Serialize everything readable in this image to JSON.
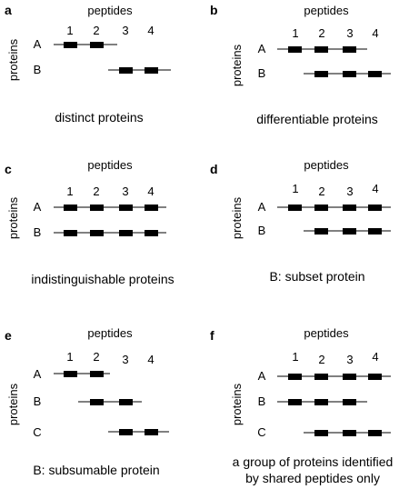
{
  "axis_label": "proteins",
  "peptide_title": "peptides",
  "panels": [
    {
      "letter": "a",
      "peptide_numbers": [
        "1",
        "2",
        "3",
        "4"
      ],
      "rows": [
        {
          "protein": "A",
          "peptides": [
            1,
            2
          ]
        },
        {
          "protein": "B",
          "peptides": [
            3,
            4
          ]
        }
      ],
      "caption": [
        "distinct proteins"
      ]
    },
    {
      "letter": "b",
      "peptide_numbers": [
        "1",
        "2",
        "3",
        "4"
      ],
      "rows": [
        {
          "protein": "A",
          "peptides": [
            1,
            2,
            3
          ]
        },
        {
          "protein": "B",
          "peptides": [
            2,
            3,
            4
          ]
        }
      ],
      "caption": [
        "differentiable proteins"
      ]
    },
    {
      "letter": "c",
      "peptide_numbers": [
        "1",
        "2",
        "3",
        "4"
      ],
      "rows": [
        {
          "protein": "A",
          "peptides": [
            1,
            2,
            3,
            4
          ]
        },
        {
          "protein": "B",
          "peptides": [
            1,
            2,
            3,
            4
          ]
        }
      ],
      "caption": [
        "indistinguishable proteins"
      ]
    },
    {
      "letter": "d",
      "peptide_numbers": [
        "1",
        "2",
        "3",
        "4"
      ],
      "rows": [
        {
          "protein": "A",
          "peptides": [
            1,
            2,
            3,
            4
          ]
        },
        {
          "protein": "B",
          "peptides": [
            2,
            3,
            4
          ]
        }
      ],
      "caption": [
        "B: subset protein"
      ]
    },
    {
      "letter": "e",
      "peptide_numbers": [
        "1",
        "2",
        "3",
        "4"
      ],
      "rows": [
        {
          "protein": "A",
          "peptides": [
            1,
            2
          ]
        },
        {
          "protein": "B",
          "peptides": [
            2,
            3
          ]
        },
        {
          "protein": "C",
          "peptides": [
            3,
            4
          ]
        }
      ],
      "caption": [
        "B: subsumable protein"
      ]
    },
    {
      "letter": "f",
      "peptide_numbers": [
        "1",
        "2",
        "3",
        "4"
      ],
      "rows": [
        {
          "protein": "A",
          "peptides": [
            1,
            2,
            3,
            4
          ]
        },
        {
          "protein": "B",
          "peptides": [
            1,
            2,
            3
          ]
        },
        {
          "protein": "C",
          "peptides": [
            2,
            3,
            4
          ]
        }
      ],
      "caption": [
        "a group of proteins identified",
        "by shared peptides only"
      ]
    }
  ]
}
